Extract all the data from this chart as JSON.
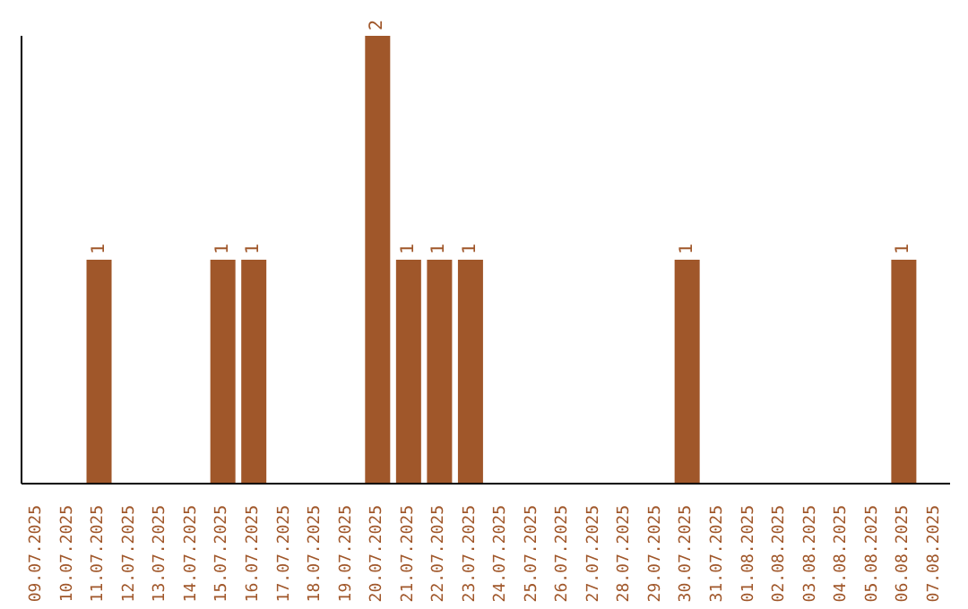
{
  "chart_data": {
    "type": "bar",
    "categories": [
      "09.07.2025",
      "10.07.2025",
      "11.07.2025",
      "12.07.2025",
      "13.07.2025",
      "14.07.2025",
      "15.07.2025",
      "16.07.2025",
      "17.07.2025",
      "18.07.2025",
      "19.07.2025",
      "20.07.2025",
      "21.07.2025",
      "22.07.2025",
      "23.07.2025",
      "24.07.2025",
      "25.07.2025",
      "26.07.2025",
      "27.07.2025",
      "28.07.2025",
      "29.07.2025",
      "30.07.2025",
      "31.07.2025",
      "01.08.2025",
      "02.08.2025",
      "03.08.2025",
      "04.08.2025",
      "05.08.2025",
      "06.08.2025",
      "07.08.2025"
    ],
    "values": [
      0,
      0,
      1,
      0,
      0,
      0,
      1,
      1,
      0,
      0,
      0,
      2,
      1,
      1,
      1,
      0,
      0,
      0,
      0,
      0,
      0,
      1,
      0,
      0,
      0,
      0,
      0,
      0,
      1,
      0
    ],
    "value_labels": [
      null,
      null,
      "1",
      null,
      null,
      null,
      "1",
      "1",
      null,
      null,
      null,
      "2",
      "1",
      "1",
      "1",
      null,
      null,
      null,
      null,
      null,
      null,
      "1",
      null,
      null,
      null,
      null,
      null,
      null,
      "1",
      null
    ],
    "color": "#a0572a",
    "grid": false,
    "legend": false
  }
}
